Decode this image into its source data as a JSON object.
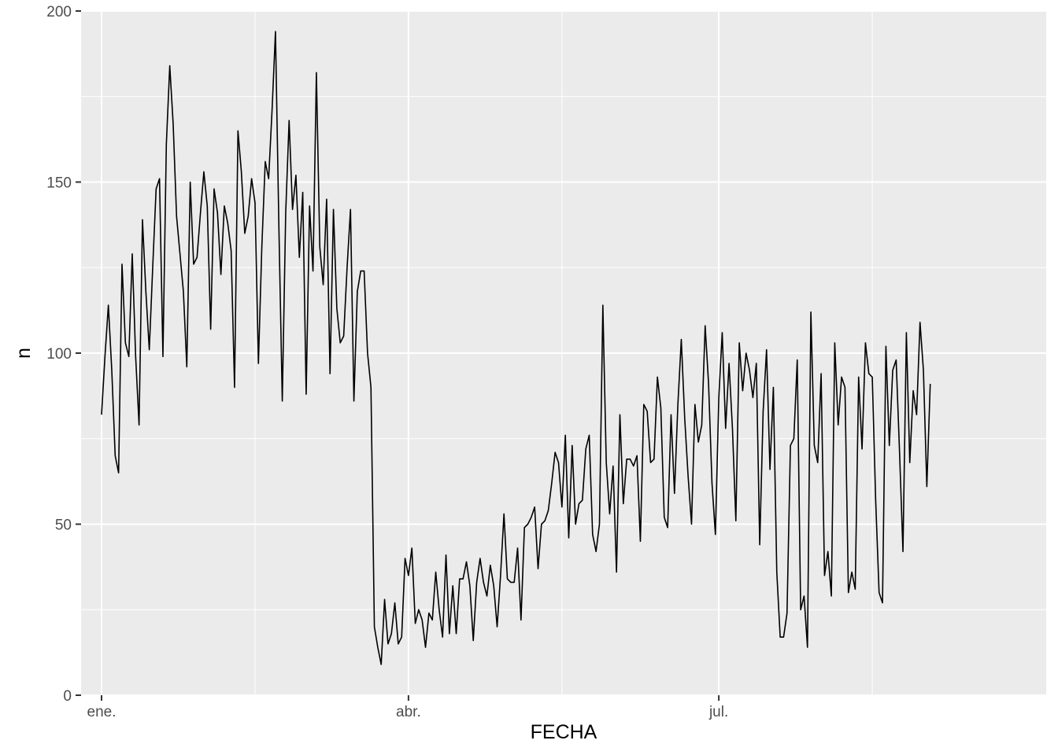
{
  "chart_data": {
    "type": "line",
    "title": "",
    "xlabel": "FECHA",
    "ylabel": "n",
    "ylim": [
      0,
      200
    ],
    "y_ticks": [
      0,
      50,
      100,
      150,
      200
    ],
    "x_range_days": [
      -6,
      277
    ],
    "x_ticks": [
      {
        "day": 0,
        "label": "ene."
      },
      {
        "day": 90,
        "label": "abr."
      },
      {
        "day": 181,
        "label": "jul."
      }
    ],
    "x_minor_days": [
      45,
      135,
      226
    ],
    "grid": true,
    "panel_background": "#ebebeb",
    "line_color": "#000000",
    "series": [
      {
        "name": "",
        "x_start_day": 0,
        "values": [
          82,
          99,
          114,
          95,
          70,
          65,
          126,
          103,
          99,
          129,
          99,
          79,
          139,
          118,
          101,
          125,
          148,
          151,
          99,
          161,
          184,
          167,
          140,
          129,
          118,
          96,
          150,
          126,
          128,
          141,
          153,
          143,
          107,
          148,
          141,
          123,
          143,
          138,
          130,
          90,
          165,
          153,
          135,
          140,
          151,
          144,
          97,
          131,
          156,
          151,
          171,
          194,
          137,
          86,
          141,
          168,
          142,
          152,
          128,
          147,
          88,
          143,
          124,
          182,
          131,
          120,
          145,
          94,
          142,
          113,
          103,
          105,
          125,
          142,
          86,
          118,
          124,
          124,
          100,
          90,
          20,
          14,
          9,
          28,
          15,
          18,
          27,
          15,
          17,
          40,
          35,
          43,
          21,
          25,
          22,
          14,
          24,
          22,
          36,
          25,
          17,
          41,
          18,
          32,
          18,
          34,
          34,
          39,
          32,
          16,
          33,
          40,
          33,
          29,
          38,
          32,
          20,
          35,
          53,
          34,
          33,
          33,
          43,
          22,
          49,
          50,
          52,
          55,
          37,
          50,
          51,
          54,
          62,
          71,
          68,
          55,
          76,
          46,
          73,
          50,
          56,
          57,
          72,
          76,
          47,
          42,
          50,
          114,
          68,
          53,
          67,
          36,
          82,
          56,
          69,
          69,
          67,
          70,
          45,
          85,
          83,
          68,
          69,
          93,
          84,
          52,
          49,
          82,
          59,
          85,
          104,
          81,
          64,
          50,
          85,
          74,
          79,
          108,
          91,
          62,
          47,
          87,
          106,
          78,
          97,
          78,
          51,
          103,
          89,
          100,
          95,
          87,
          97,
          44,
          83,
          101,
          66,
          90,
          36,
          17,
          17,
          24,
          73,
          75,
          98,
          25,
          29,
          14,
          112,
          73,
          68,
          94,
          35,
          42,
          29,
          103,
          79,
          93,
          90,
          30,
          36,
          31,
          93,
          72,
          103,
          94,
          93,
          57,
          30,
          27,
          102,
          73,
          95,
          98,
          71,
          42,
          106,
          68,
          89,
          82,
          109,
          95,
          61,
          91
        ]
      }
    ]
  }
}
